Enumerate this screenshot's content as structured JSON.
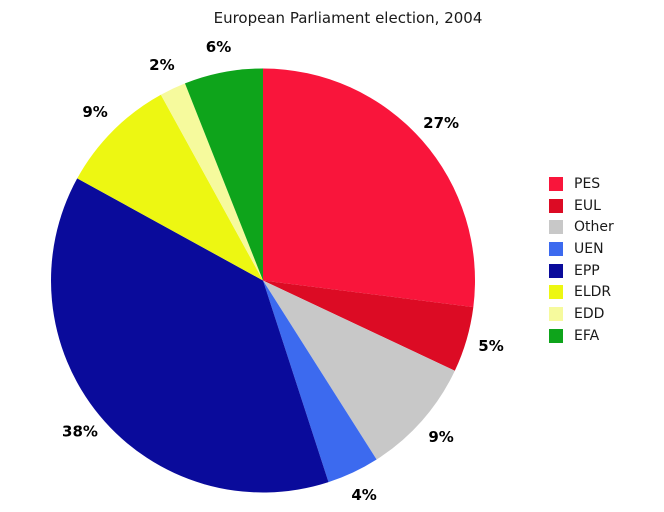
{
  "chart_data": {
    "type": "pie",
    "title": "European Parliament election, 2004",
    "direction": "clockwise",
    "start_angle": "12-o-clock",
    "legend_position": "right",
    "total": 100,
    "segments": [
      {
        "label": "PES",
        "value": 27,
        "pct_label": "27%",
        "color": "#F9153B"
      },
      {
        "label": "EUL",
        "value": 5,
        "pct_label": "5%",
        "color": "#DC0B24"
      },
      {
        "label": "Other",
        "value": 9,
        "pct_label": "9%",
        "color": "#C8C8C8"
      },
      {
        "label": "UEN",
        "value": 4,
        "pct_label": "4%",
        "color": "#3C6AEF"
      },
      {
        "label": "EPP",
        "value": 38,
        "pct_label": "38%",
        "color": "#0A0B9B"
      },
      {
        "label": "ELDR",
        "value": 9,
        "pct_label": "9%",
        "color": "#EDF712"
      },
      {
        "label": "EDD",
        "value": 2,
        "pct_label": "2%",
        "color": "#F6FA9D"
      },
      {
        "label": "EFA",
        "value": 6,
        "pct_label": "6%",
        "color": "#0EA41B"
      }
    ]
  }
}
